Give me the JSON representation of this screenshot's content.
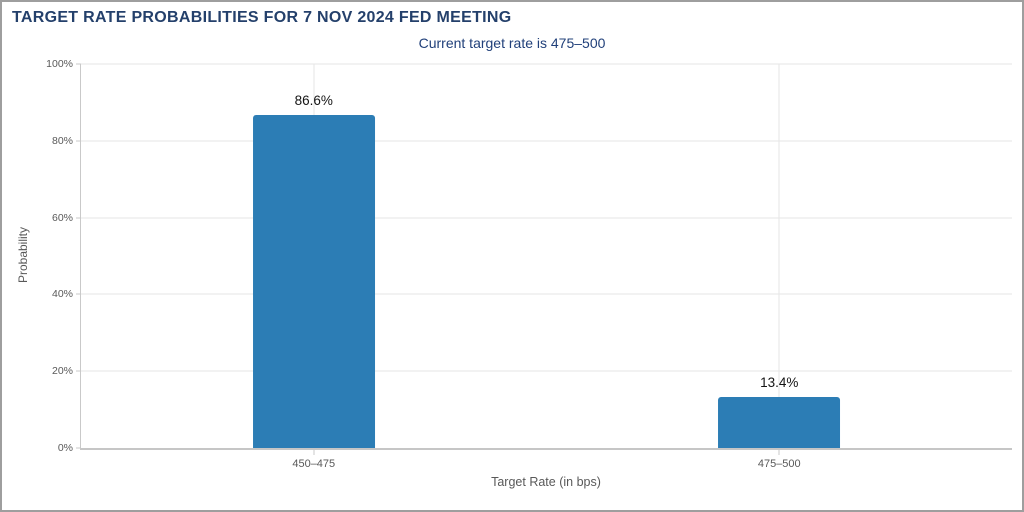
{
  "header": {
    "title": "TARGET RATE PROBABILITIES FOR 7 NOV 2024 FED MEETING",
    "subtitle": "Current target rate is 475–500"
  },
  "chart_data": {
    "type": "bar",
    "title": "TARGET RATE PROBABILITIES FOR 7 NOV 2024 FED MEETING",
    "subtitle": "Current target rate is 475–500",
    "categories": [
      "450–475",
      "475–500"
    ],
    "values": [
      86.6,
      13.4
    ],
    "value_labels": [
      "86.6%",
      "13.4%"
    ],
    "xlabel": "Target Rate (in bps)",
    "ylabel": "Probability",
    "ylim": [
      0,
      100
    ],
    "yticks": [
      0,
      20,
      40,
      60,
      80,
      100
    ],
    "ytick_suffix": "%",
    "grid": true,
    "legend": "none",
    "bar_color": "#2c7db5"
  },
  "colors": {
    "title_text": "#24406b",
    "subtitle_text": "#21407a",
    "bar": "#2c7db5",
    "gridline": "#e6e6e6",
    "axis_line": "#c9c9c9",
    "tick_text": "#595959",
    "value_label_text": "#141414",
    "page_border": "#9e9e9e",
    "background": "#ffffff"
  }
}
